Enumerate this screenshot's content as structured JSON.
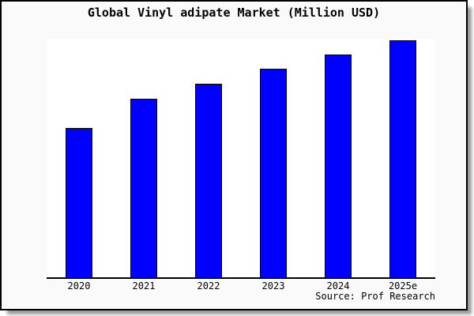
{
  "title": "Global Vinyl adipate Market (Million USD)",
  "source_note": "Source: Prof Research",
  "frame": {
    "background": "#fafafa",
    "border_color": "#000000",
    "shadow_color": "#9a9a9a",
    "plot_background": "#ffffff"
  },
  "chart_data": {
    "type": "bar",
    "title": "Global Vinyl adipate Market (Million USD)",
    "categories": [
      "2020",
      "2021",
      "2022",
      "2023",
      "2024",
      "2025e"
    ],
    "values": [
      63,
      75.3,
      81.7,
      88,
      94,
      100
    ],
    "values_note": "relative bar heights as % of the 2025e bar; no y-axis scale, gridlines, ticks or data labels are shown",
    "xlabel": "",
    "ylabel": "",
    "ylim": [
      0,
      100
    ],
    "grid": false,
    "legend": "none",
    "bar_color": "#0000ff",
    "bar_border_color": "#000000",
    "axis_color": "#000000",
    "source": "Source: Prof Research"
  }
}
